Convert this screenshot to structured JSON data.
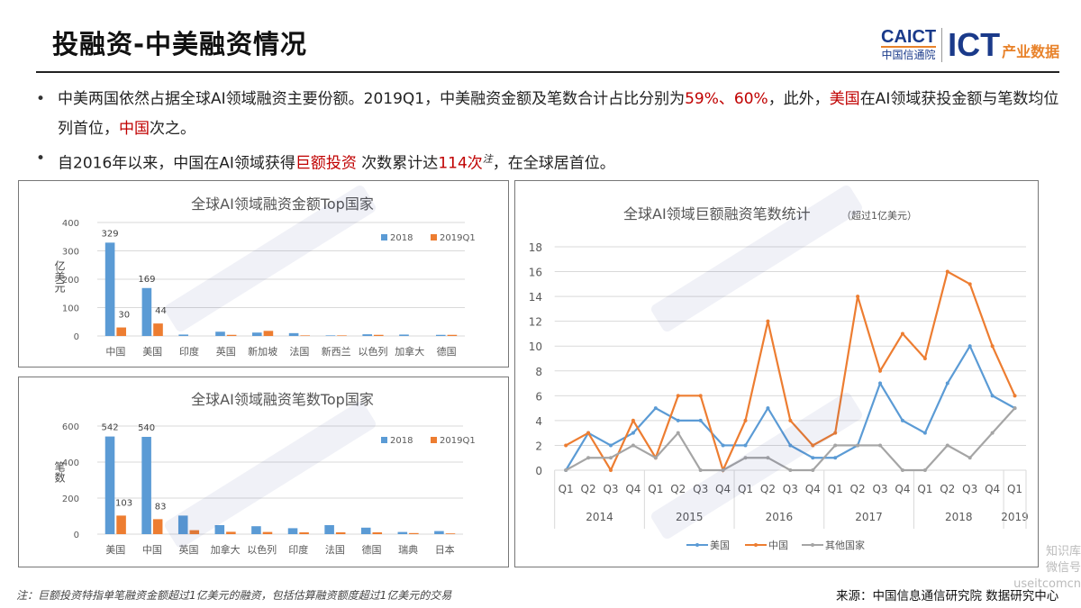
{
  "header": {
    "title": "投融资-中美融资情况",
    "logo": {
      "caict_en": "CAICT",
      "caict_cn": "中国信通院",
      "ict": "ICT",
      "ict_cn": "产业数据"
    }
  },
  "bullets": [
    {
      "parts": [
        {
          "text": "中美两国依然占据全球AI领域融资主要份额。2019Q1，中美融资金额及笔数合计占比分别为",
          "red": false
        },
        {
          "text": "59%、60%",
          "red": true
        },
        {
          "text": "，此外，",
          "red": false
        },
        {
          "text": "美国",
          "red": true
        },
        {
          "text": "在AI领域获投金额与笔数均位列首位，",
          "red": false
        },
        {
          "text": "中国",
          "red": true
        },
        {
          "text": "次之。",
          "red": false
        }
      ]
    },
    {
      "parts": [
        {
          "text": "自2016年以来，中国在AI领域获得",
          "red": false
        },
        {
          "text": "巨额投资",
          "red": true
        },
        {
          "text": " 次数累计达",
          "red": false
        },
        {
          "text": "114次",
          "red": true
        },
        {
          "text": "注",
          "red": false,
          "sup": true
        },
        {
          "text": "，在全球居首位。",
          "red": false
        }
      ]
    }
  ],
  "colors": {
    "series_2018": "#5b9bd5",
    "series_2019q1": "#ed7d31",
    "us": "#5b9bd5",
    "china": "#ed7d31",
    "other": "#a5a5a5",
    "highlight": "#c00000"
  },
  "chart_data": [
    {
      "type": "bar",
      "title": "全球AI领域融资金额Top国家",
      "ylabel": "亿美元",
      "ylim": [
        0,
        400
      ],
      "yticks": [
        0,
        100,
        200,
        300,
        400
      ],
      "grid": true,
      "legend": "top-right",
      "categories": [
        "中国",
        "美国",
        "印度",
        "英国",
        "新加坡",
        "法国",
        "新西兰",
        "以色列",
        "加拿大",
        "德国"
      ],
      "series": [
        {
          "name": "2018",
          "values": [
            329,
            169,
            5,
            15,
            12,
            10,
            2,
            6,
            5,
            4
          ],
          "labels": [
            "329",
            "169",
            "",
            "",
            "",
            "",
            "",
            "",
            "",
            ""
          ]
        },
        {
          "name": "2019Q1",
          "values": [
            30,
            44,
            0,
            4,
            18,
            2,
            2,
            4,
            0,
            4
          ],
          "labels": [
            "30",
            "44",
            "",
            "",
            "",
            "",
            "",
            "",
            "",
            ""
          ]
        }
      ]
    },
    {
      "type": "bar",
      "title": "全球AI领域融资笔数Top国家",
      "ylabel": "笔数",
      "ylim": [
        0,
        600
      ],
      "yticks": [
        0,
        200,
        400,
        600
      ],
      "grid": true,
      "legend": "top-right",
      "categories": [
        "美国",
        "中国",
        "英国",
        "加拿大",
        "以色列",
        "印度",
        "法国",
        "德国",
        "瑞典",
        "日本"
      ],
      "series": [
        {
          "name": "2018",
          "values": [
            542,
            540,
            103,
            50,
            44,
            33,
            50,
            36,
            12,
            17
          ],
          "labels": [
            "542",
            "540",
            "",
            "",
            "",
            "",
            "",
            "",
            "",
            ""
          ]
        },
        {
          "name": "2019Q1",
          "values": [
            103,
            83,
            22,
            13,
            12,
            10,
            10,
            10,
            6,
            4
          ],
          "labels": [
            "103",
            "83",
            "",
            "",
            "",
            "",
            "",
            "",
            "",
            ""
          ]
        }
      ]
    },
    {
      "type": "line",
      "title": "全球AI领域巨额融资笔数统计",
      "subtitle": "（超过1亿美元）",
      "ylim": [
        0,
        18
      ],
      "yticks": [
        0,
        2,
        4,
        6,
        8,
        10,
        12,
        14,
        16,
        18
      ],
      "grid": true,
      "legend": "bottom",
      "quarters": [
        "Q1",
        "Q2",
        "Q3",
        "Q4",
        "Q1",
        "Q2",
        "Q3",
        "Q4",
        "Q1",
        "Q2",
        "Q3",
        "Q4",
        "Q1",
        "Q2",
        "Q3",
        "Q4",
        "Q1",
        "Q2",
        "Q3",
        "Q4",
        "Q1"
      ],
      "years": [
        {
          "label": "2014",
          "count": 4
        },
        {
          "label": "2015",
          "count": 4
        },
        {
          "label": "2016",
          "count": 4
        },
        {
          "label": "2017",
          "count": 4
        },
        {
          "label": "2018",
          "count": 4
        },
        {
          "label": "2019",
          "count": 1
        }
      ],
      "series": [
        {
          "name": "美国",
          "values": [
            0,
            3,
            2,
            3,
            5,
            4,
            4,
            2,
            2,
            5,
            2,
            1,
            1,
            2,
            7,
            4,
            3,
            7,
            10,
            6,
            5
          ]
        },
        {
          "name": "中国",
          "values": [
            2,
            3,
            0,
            4,
            1,
            6,
            6,
            0,
            4,
            12,
            4,
            2,
            3,
            14,
            8,
            11,
            9,
            16,
            15,
            10,
            6
          ]
        },
        {
          "name": "其他国家",
          "values": [
            0,
            1,
            1,
            2,
            1,
            3,
            0,
            0,
            1,
            1,
            0,
            0,
            2,
            2,
            2,
            0,
            0,
            2,
            1,
            3,
            5
          ]
        }
      ]
    }
  ],
  "footer": {
    "note": "注：巨额投资特指单笔融资金额超过1亿美元的融资，包括估算融资额度超过1亿美元的交易",
    "source": "来源：中国信息通信研究院 数据研究中心"
  },
  "watermark": {
    "en": "CAICT",
    "cn": "中国信通院",
    "wechat_name": "知识库",
    "wechat_id": "微信号 useitcomcn"
  }
}
